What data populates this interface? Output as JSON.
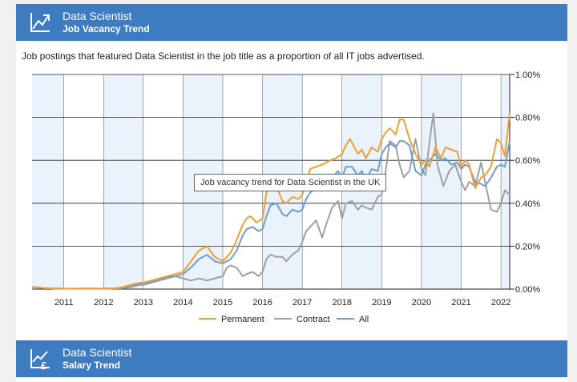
{
  "header": {
    "title": "Data Scientist",
    "subtitle": "Job Vacancy Trend"
  },
  "description": "Job postings that featured Data Scientist in the job title as a proportion of all IT jobs advertised.",
  "tooltip": "Job vacancy trend for Data Scientist in the UK",
  "footer_header": {
    "title": "Data Scientist",
    "subtitle": "Salary Trend"
  },
  "colors": {
    "header_bg": "#3d7cc0",
    "permanent": "#f0a030",
    "contract": "#a0a0a0",
    "all": "#6a9fd0",
    "band": "#eaf2fc"
  },
  "icons": {
    "header_icon": "trend-chart-icon",
    "footer_icon": "pound-chart-icon"
  },
  "chart_data": {
    "type": "line",
    "title": "Job vacancy trend for Data Scientist in the UK",
    "xlabel": "",
    "ylabel": "",
    "xlim": [
      2010.2,
      2022.22
    ],
    "ylim": [
      0,
      1.0
    ],
    "y_ticks": [
      0,
      0.2,
      0.4,
      0.6,
      0.8,
      1.0
    ],
    "y_tick_labels": [
      "0.00%",
      "0.20%",
      "0.40%",
      "0.60%",
      "0.80%",
      "1.00%"
    ],
    "x_ticks": [
      2011,
      2012,
      2013,
      2014,
      2015,
      2016,
      2017,
      2018,
      2019,
      2020,
      2021,
      2022
    ],
    "x_tick_labels": [
      "2011",
      "2012",
      "2013",
      "2014",
      "2015",
      "2016",
      "2017",
      "2018",
      "2019",
      "2020",
      "2021",
      "2022"
    ],
    "legend_position": "bottom",
    "series": [
      {
        "name": "Permanent",
        "x": [
          2010.2,
          2010.5,
          2011.0,
          2011.5,
          2012.0,
          2012.3,
          2012.5,
          2012.7,
          2012.9,
          2013.0,
          2013.2,
          2013.4,
          2013.6,
          2013.8,
          2014.0,
          2014.2,
          2014.4,
          2014.6,
          2014.8,
          2015.0,
          2015.1,
          2015.2,
          2015.35,
          2015.5,
          2015.6,
          2015.7,
          2015.85,
          2016.0,
          2016.1,
          2016.2,
          2016.35,
          2016.5,
          2016.6,
          2016.75,
          2016.9,
          2017.0,
          2017.2,
          2017.35,
          2017.5,
          2017.7,
          2017.85,
          2018.0,
          2018.1,
          2018.2,
          2018.4,
          2018.5,
          2018.6,
          2018.75,
          2018.9,
          2019.0,
          2019.1,
          2019.2,
          2019.35,
          2019.45,
          2019.55,
          2019.7,
          2019.85,
          2020.0,
          2020.1,
          2020.2,
          2020.35,
          2020.5,
          2020.6,
          2020.75,
          2020.9,
          2021.0,
          2021.1,
          2021.2,
          2021.35,
          2021.5,
          2021.6,
          2021.75,
          2021.9,
          2022.0,
          2022.1,
          2022.22
        ],
        "values": [
          0.01,
          0.005,
          0.002,
          0.003,
          0.003,
          0.004,
          0.01,
          0.02,
          0.03,
          0.03,
          0.04,
          0.05,
          0.06,
          0.07,
          0.08,
          0.13,
          0.18,
          0.2,
          0.15,
          0.13,
          0.15,
          0.17,
          0.23,
          0.3,
          0.33,
          0.34,
          0.31,
          0.33,
          0.45,
          0.47,
          0.48,
          0.41,
          0.4,
          0.43,
          0.42,
          0.44,
          0.56,
          0.57,
          0.58,
          0.6,
          0.61,
          0.63,
          0.67,
          0.7,
          0.63,
          0.65,
          0.61,
          0.66,
          0.64,
          0.7,
          0.73,
          0.75,
          0.72,
          0.79,
          0.79,
          0.7,
          0.63,
          0.58,
          0.6,
          0.57,
          0.66,
          0.61,
          0.66,
          0.65,
          0.64,
          0.57,
          0.6,
          0.58,
          0.47,
          0.52,
          0.53,
          0.57,
          0.7,
          0.68,
          0.62,
          0.82
        ]
      },
      {
        "name": "Contract",
        "x": [
          2010.2,
          2010.5,
          2011.0,
          2011.5,
          2012.0,
          2012.3,
          2012.5,
          2012.7,
          2012.9,
          2013.0,
          2013.2,
          2013.4,
          2013.6,
          2013.8,
          2014.0,
          2014.2,
          2014.4,
          2014.6,
          2014.8,
          2015.0,
          2015.1,
          2015.2,
          2015.35,
          2015.5,
          2015.6,
          2015.75,
          2015.9,
          2016.0,
          2016.1,
          2016.2,
          2016.35,
          2016.5,
          2016.6,
          2016.75,
          2016.9,
          2017.0,
          2017.1,
          2017.2,
          2017.35,
          2017.5,
          2017.6,
          2017.75,
          2017.9,
          2018.0,
          2018.1,
          2018.25,
          2018.4,
          2018.5,
          2018.6,
          2018.75,
          2018.9,
          2019.0,
          2019.1,
          2019.2,
          2019.35,
          2019.45,
          2019.55,
          2019.7,
          2019.85,
          2020.0,
          2020.1,
          2020.2,
          2020.3,
          2020.4,
          2020.55,
          2020.7,
          2020.85,
          2021.0,
          2021.1,
          2021.2,
          2021.35,
          2021.5,
          2021.6,
          2021.75,
          2021.9,
          2022.0,
          2022.1,
          2022.22
        ],
        "values": [
          0.01,
          0.005,
          0.002,
          0.002,
          0.002,
          0.003,
          0.005,
          0.01,
          0.02,
          0.02,
          0.03,
          0.04,
          0.05,
          0.06,
          0.05,
          0.04,
          0.05,
          0.04,
          0.05,
          0.06,
          0.1,
          0.11,
          0.1,
          0.06,
          0.07,
          0.08,
          0.06,
          0.08,
          0.14,
          0.16,
          0.15,
          0.15,
          0.13,
          0.16,
          0.18,
          0.22,
          0.27,
          0.29,
          0.32,
          0.24,
          0.3,
          0.38,
          0.41,
          0.33,
          0.4,
          0.41,
          0.37,
          0.39,
          0.38,
          0.37,
          0.43,
          0.44,
          0.55,
          0.69,
          0.67,
          0.58,
          0.52,
          0.55,
          0.7,
          0.56,
          0.53,
          0.68,
          0.82,
          0.58,
          0.48,
          0.55,
          0.58,
          0.5,
          0.46,
          0.5,
          0.48,
          0.59,
          0.5,
          0.37,
          0.36,
          0.4,
          0.46,
          0.44
        ]
      },
      {
        "name": "All",
        "x": [
          2010.2,
          2010.5,
          2011.0,
          2011.5,
          2012.0,
          2012.3,
          2012.5,
          2012.7,
          2012.9,
          2013.0,
          2013.2,
          2013.4,
          2013.6,
          2013.8,
          2014.0,
          2014.2,
          2014.4,
          2014.6,
          2014.8,
          2015.0,
          2015.1,
          2015.2,
          2015.35,
          2015.5,
          2015.6,
          2015.75,
          2015.9,
          2016.0,
          2016.1,
          2016.2,
          2016.35,
          2016.5,
          2016.6,
          2016.75,
          2016.9,
          2017.0,
          2017.1,
          2017.2,
          2017.35,
          2017.5,
          2017.6,
          2017.75,
          2017.9,
          2018.0,
          2018.1,
          2018.25,
          2018.4,
          2018.5,
          2018.6,
          2018.75,
          2018.9,
          2019.0,
          2019.1,
          2019.2,
          2019.35,
          2019.45,
          2019.55,
          2019.7,
          2019.85,
          2020.0,
          2020.1,
          2020.2,
          2020.35,
          2020.5,
          2020.6,
          2020.75,
          2020.9,
          2021.0,
          2021.1,
          2021.2,
          2021.35,
          2021.5,
          2021.6,
          2021.75,
          2021.9,
          2022.0,
          2022.1,
          2022.22
        ],
        "values": [
          0.01,
          0.005,
          0.002,
          0.003,
          0.003,
          0.004,
          0.008,
          0.015,
          0.025,
          0.02,
          0.035,
          0.045,
          0.055,
          0.06,
          0.07,
          0.1,
          0.14,
          0.16,
          0.13,
          0.12,
          0.13,
          0.14,
          0.18,
          0.25,
          0.28,
          0.29,
          0.27,
          0.28,
          0.34,
          0.39,
          0.4,
          0.35,
          0.34,
          0.37,
          0.36,
          0.37,
          0.42,
          0.45,
          0.47,
          0.49,
          0.5,
          0.52,
          0.55,
          0.52,
          0.57,
          0.57,
          0.53,
          0.55,
          0.51,
          0.56,
          0.55,
          0.63,
          0.66,
          0.68,
          0.66,
          0.69,
          0.69,
          0.67,
          0.55,
          0.53,
          0.58,
          0.6,
          0.63,
          0.6,
          0.61,
          0.58,
          0.59,
          0.56,
          0.58,
          0.57,
          0.5,
          0.49,
          0.48,
          0.52,
          0.57,
          0.58,
          0.57,
          0.69
        ]
      }
    ]
  }
}
